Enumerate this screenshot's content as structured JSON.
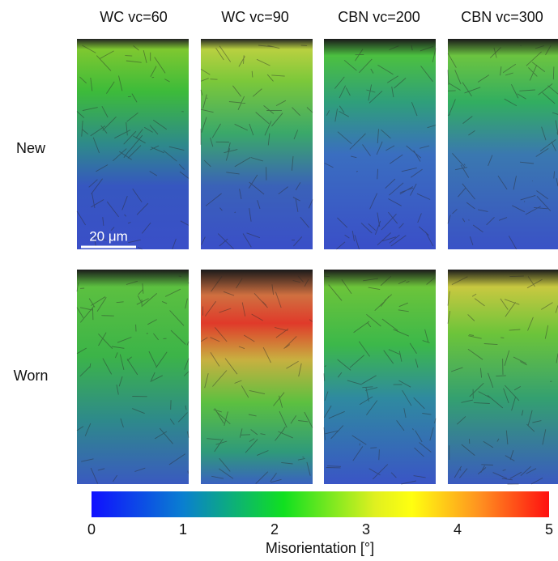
{
  "columns": [
    "WC vc=60",
    "WC vc=90",
    "CBN vc=200",
    "CBN vc=300"
  ],
  "rows": [
    "New",
    "Worn"
  ],
  "scale_bar": "20 μm",
  "colorbar": {
    "label": "Misorientation [°]",
    "ticks": [
      0,
      1,
      2,
      3,
      4,
      5
    ]
  }
}
